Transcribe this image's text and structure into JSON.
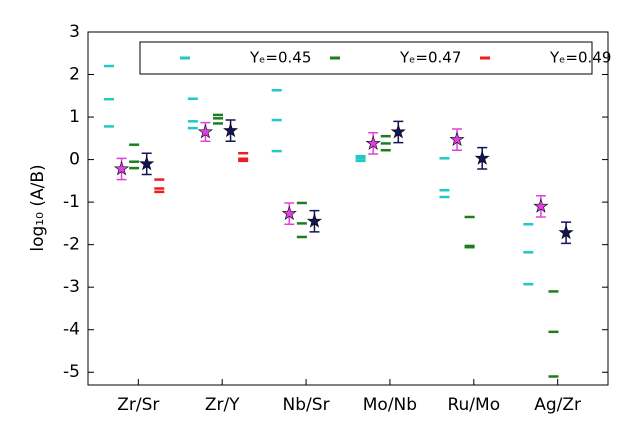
{
  "chart_data": {
    "type": "scatter",
    "ylabel": "log₁₀ (A/B)",
    "categories": [
      "Zr/Sr",
      "Zr/Y",
      "Nb/Sr",
      "Mo/Nb",
      "Ru/Mo",
      "Ag/Zr"
    ],
    "ylim": [
      -5.3,
      3
    ],
    "yticks": [
      -5,
      -4,
      -3,
      -2,
      -1,
      0,
      1,
      2,
      3
    ],
    "legend": "top",
    "series": [
      {
        "name": "Yₑ=0.45",
        "color": "#22c7c7",
        "values": [
          [
            2.2,
            1.42,
            0.78
          ],
          [
            1.43,
            0.9,
            0.74
          ],
          [
            1.63,
            0.93,
            0.2
          ],
          [
            0.08,
            0.03,
            -0.03
          ],
          [
            0.03,
            -0.72,
            -0.88
          ],
          [
            -1.52,
            -2.18,
            -2.93
          ]
        ]
      },
      {
        "name": "Yₑ=0.47",
        "color": "#1e7d1e",
        "values": [
          [
            0.35,
            -0.05,
            -0.2
          ],
          [
            1.05,
            0.97,
            0.85
          ],
          [
            -1.02,
            -1.5,
            -1.82
          ],
          [
            0.55,
            0.38,
            0.22
          ],
          [
            -1.35,
            -2.03,
            -2.06
          ],
          [
            -3.1,
            -4.05,
            -5.1
          ]
        ]
      },
      {
        "name": "Yₑ=0.49",
        "color": "#ee1c1c",
        "values": [
          [
            -0.47,
            -0.68,
            -0.76
          ],
          [
            0.15,
            0.02,
            -0.03
          ],
          [],
          [],
          [],
          []
        ]
      }
    ],
    "points": [
      {
        "color": "#e040e0",
        "values": [
          -0.22,
          0.65,
          -1.27,
          0.38,
          0.47,
          -1.1
        ],
        "errors": [
          0.25,
          0.22,
          0.25,
          0.25,
          0.25,
          0.25
        ]
      },
      {
        "color": "#14145a",
        "values": [
          -0.1,
          0.68,
          -1.45,
          0.65,
          0.03,
          -1.72
        ],
        "errors": [
          0.25,
          0.25,
          0.25,
          0.25,
          0.25,
          0.25
        ]
      }
    ]
  }
}
